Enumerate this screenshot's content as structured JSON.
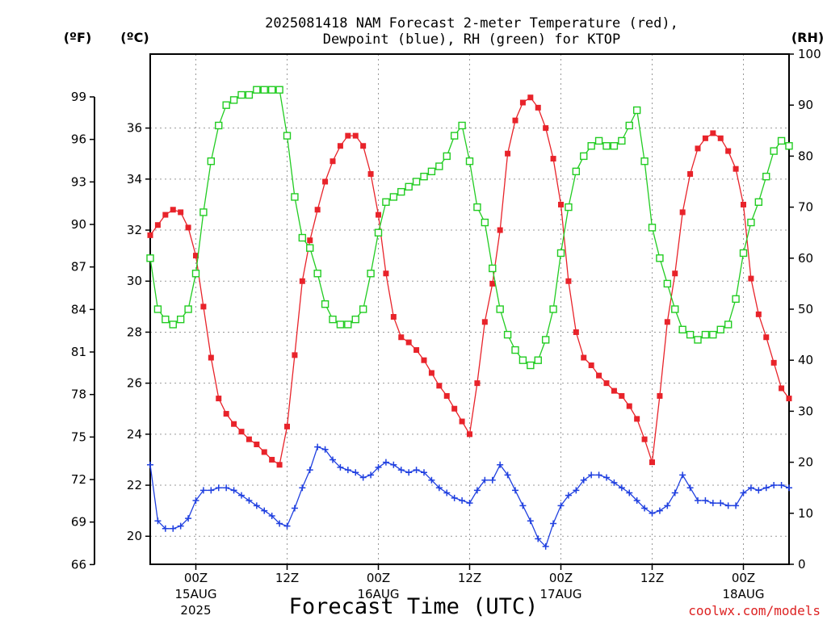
{
  "chart_data": {
    "type": "line",
    "title_line1": "2025081418 NAM Forecast 2-meter Temperature (red),",
    "title_line2": "Dewpoint (blue), RH (green) for KTOP",
    "xlabel": "Forecast Time (UTC)",
    "credit": "coolwx.com/models",
    "units": {
      "f": "(ºF)",
      "c": "(ºC)",
      "rh": "(RH)"
    },
    "x_start_hour": 18,
    "x_range_hours": [
      18,
      102
    ],
    "y_c_range": [
      18.9,
      38.9
    ],
    "y_rh_range": [
      0,
      100
    ],
    "y_f_ticks": [
      "66",
      "69",
      "72",
      "75",
      "78",
      "81",
      "84",
      "87",
      "90",
      "93",
      "96",
      "99"
    ],
    "y_c_ticks": [
      "20",
      "22",
      "24",
      "26",
      "28",
      "30",
      "32",
      "34",
      "36"
    ],
    "y_rh_ticks": [
      "0",
      "10",
      "20",
      "30",
      "40",
      "50",
      "60",
      "70",
      "80",
      "90",
      "100"
    ],
    "x_ticks": [
      {
        "hour": 24,
        "l1": "00Z",
        "l2": "15AUG",
        "l3": "2025"
      },
      {
        "hour": 36,
        "l1": "12Z",
        "l2": "",
        "l3": ""
      },
      {
        "hour": 48,
        "l1": "00Z",
        "l2": "16AUG",
        "l3": ""
      },
      {
        "hour": 60,
        "l1": "12Z",
        "l2": "",
        "l3": ""
      },
      {
        "hour": 72,
        "l1": "00Z",
        "l2": "17AUG",
        "l3": ""
      },
      {
        "hour": 84,
        "l1": "12Z",
        "l2": "",
        "l3": ""
      },
      {
        "hour": 96,
        "l1": "00Z",
        "l2": "18AUG",
        "l3": ""
      }
    ],
    "grid": true,
    "series": [
      {
        "key": "temperature",
        "color": "#e8232a",
        "marker": "filled-square",
        "unit": "C",
        "values": [
          31.8,
          32.2,
          32.6,
          32.8,
          32.7,
          32.1,
          31.0,
          29.0,
          27.0,
          25.4,
          24.8,
          24.4,
          24.1,
          23.8,
          23.6,
          23.3,
          23.0,
          22.8,
          24.3,
          27.1,
          30.0,
          31.6,
          32.8,
          33.9,
          34.7,
          35.3,
          35.7,
          35.7,
          35.3,
          34.2,
          32.6,
          30.3,
          28.6,
          27.8,
          27.6,
          27.3,
          26.9,
          26.4,
          25.9,
          25.5,
          25.0,
          24.5,
          24.0,
          26.0,
          28.4,
          29.9,
          32.0,
          35.0,
          36.3,
          37.0,
          37.2,
          36.8,
          36.0,
          34.8,
          33.0,
          30.0,
          28.0,
          27.0,
          26.7,
          26.3,
          26.0,
          25.7,
          25.5,
          25.1,
          24.6,
          23.8,
          22.9,
          25.5,
          28.4,
          30.3,
          32.7,
          34.2,
          35.2,
          35.6,
          35.8,
          35.6,
          35.1,
          34.4,
          33.0,
          30.1,
          28.7,
          27.8,
          26.8,
          25.8,
          25.4
        ]
      },
      {
        "key": "dewpoint",
        "color": "#2040e0",
        "marker": "plus",
        "unit": "C",
        "values": [
          22.8,
          20.6,
          20.3,
          20.3,
          20.4,
          20.7,
          21.4,
          21.8,
          21.8,
          21.9,
          21.9,
          21.8,
          21.6,
          21.4,
          21.2,
          21.0,
          20.8,
          20.5,
          20.4,
          21.1,
          21.9,
          22.6,
          23.5,
          23.4,
          23.0,
          22.7,
          22.6,
          22.5,
          22.3,
          22.4,
          22.7,
          22.9,
          22.8,
          22.6,
          22.5,
          22.6,
          22.5,
          22.2,
          21.9,
          21.7,
          21.5,
          21.4,
          21.3,
          21.8,
          22.2,
          22.2,
          22.8,
          22.4,
          21.8,
          21.2,
          20.6,
          19.9,
          19.6,
          20.5,
          21.2,
          21.6,
          21.8,
          22.2,
          22.4,
          22.4,
          22.3,
          22.1,
          21.9,
          21.7,
          21.4,
          21.1,
          20.9,
          21.0,
          21.2,
          21.7,
          22.4,
          21.9,
          21.4,
          21.4,
          21.3,
          21.3,
          21.2,
          21.2,
          21.7,
          21.9,
          21.8,
          21.9,
          22.0,
          22.0,
          21.9
        ]
      },
      {
        "key": "rh",
        "color": "#22cc22",
        "marker": "open-square",
        "unit": "%",
        "values": [
          60,
          50,
          48,
          47,
          48,
          50,
          57,
          69,
          79,
          86,
          90,
          91,
          92,
          92,
          93,
          93,
          93,
          93,
          84,
          72,
          64,
          62,
          57,
          51,
          48,
          47,
          47,
          48,
          50,
          57,
          65,
          71,
          72,
          73,
          74,
          75,
          76,
          77,
          78,
          80,
          84,
          86,
          79,
          70,
          67,
          58,
          50,
          45,
          42,
          40,
          39,
          40,
          44,
          50,
          61,
          70,
          77,
          80,
          82,
          83,
          82,
          82,
          83,
          86,
          89,
          79,
          66,
          60,
          55,
          50,
          46,
          45,
          44,
          45,
          45,
          46,
          47,
          52,
          61,
          67,
          71,
          76,
          81,
          83,
          82
        ]
      }
    ]
  }
}
